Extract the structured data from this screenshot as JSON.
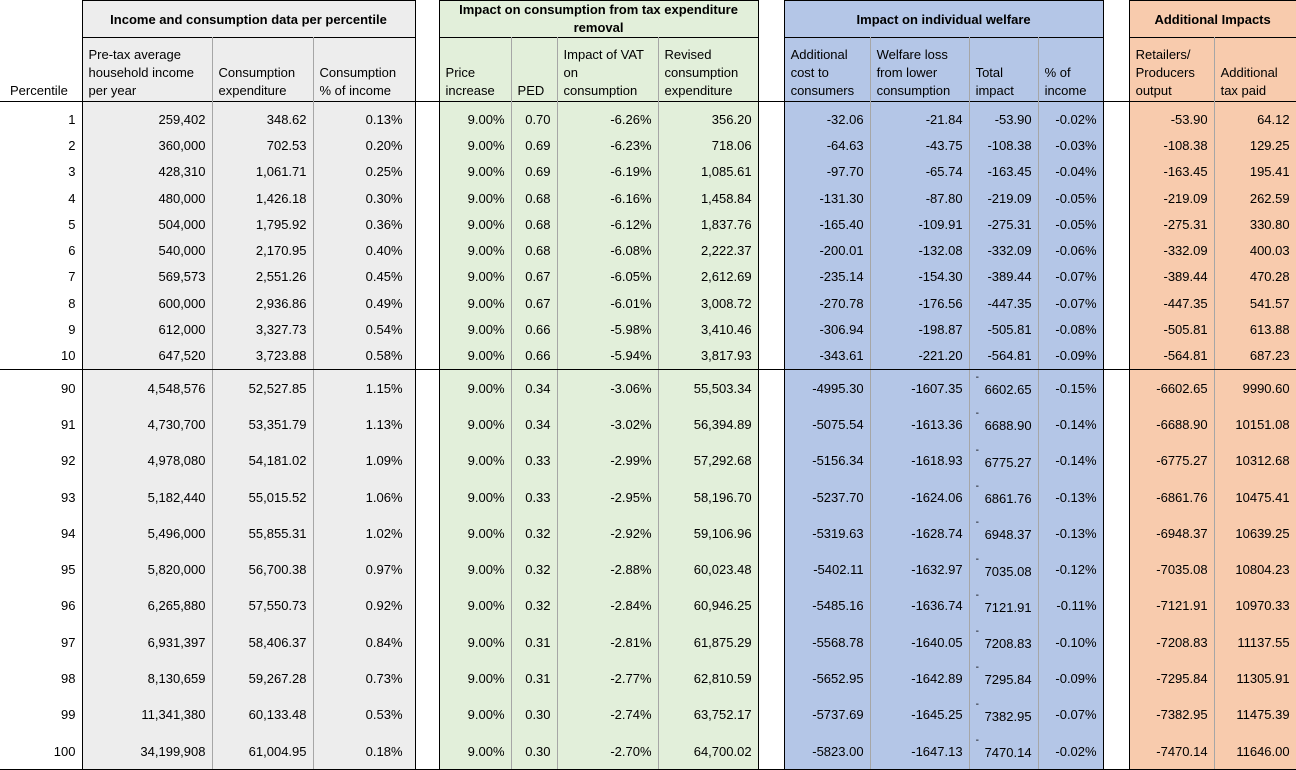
{
  "headers": {
    "percentile": "Percentile",
    "group1": "Income and consumption data per percentile",
    "group2": "Impact on consumption from tax expenditure removal",
    "group3": "Impact on individual welfare",
    "group4": "Additional Impacts",
    "income": "Pre-tax average household income per year",
    "consumption": "Consumption expenditure",
    "cons_pct": "Consumption % of income",
    "price_increase": "Price increase",
    "ped": "PED",
    "vat_impact": "Impact of VAT on consumption",
    "revised": "Revised consumption expenditure",
    "add_cost": "Additional cost to consumers",
    "welfare_loss": "Welfare loss from lower consumption",
    "total_impact": "Total impact",
    "pct_income": "% of income",
    "retail_output": "Retailers/ Producers output",
    "add_tax": "Additional tax paid"
  },
  "rows_top": [
    [
      "1",
      "259,402",
      "348.62",
      "0.13%",
      "9.00%",
      "0.70",
      "-6.26%",
      "356.20",
      "-32.06",
      "-21.84",
      "-53.90",
      "-0.02%",
      "-53.90",
      "64.12"
    ],
    [
      "2",
      "360,000",
      "702.53",
      "0.20%",
      "9.00%",
      "0.69",
      "-6.23%",
      "718.06",
      "-64.63",
      "-43.75",
      "-108.38",
      "-0.03%",
      "-108.38",
      "129.25"
    ],
    [
      "3",
      "428,310",
      "1,061.71",
      "0.25%",
      "9.00%",
      "0.69",
      "-6.19%",
      "1,085.61",
      "-97.70",
      "-65.74",
      "-163.45",
      "-0.04%",
      "-163.45",
      "195.41"
    ],
    [
      "4",
      "480,000",
      "1,426.18",
      "0.30%",
      "9.00%",
      "0.68",
      "-6.16%",
      "1,458.84",
      "-131.30",
      "-87.80",
      "-219.09",
      "-0.05%",
      "-219.09",
      "262.59"
    ],
    [
      "5",
      "504,000",
      "1,795.92",
      "0.36%",
      "9.00%",
      "0.68",
      "-6.12%",
      "1,837.76",
      "-165.40",
      "-109.91",
      "-275.31",
      "-0.05%",
      "-275.31",
      "330.80"
    ],
    [
      "6",
      "540,000",
      "2,170.95",
      "0.40%",
      "9.00%",
      "0.68",
      "-6.08%",
      "2,222.37",
      "-200.01",
      "-132.08",
      "-332.09",
      "-0.06%",
      "-332.09",
      "400.03"
    ],
    [
      "7",
      "569,573",
      "2,551.26",
      "0.45%",
      "9.00%",
      "0.67",
      "-6.05%",
      "2,612.69",
      "-235.14",
      "-154.30",
      "-389.44",
      "-0.07%",
      "-389.44",
      "470.28"
    ],
    [
      "8",
      "600,000",
      "2,936.86",
      "0.49%",
      "9.00%",
      "0.67",
      "-6.01%",
      "3,008.72",
      "-270.78",
      "-176.56",
      "-447.35",
      "-0.07%",
      "-447.35",
      "541.57"
    ],
    [
      "9",
      "612,000",
      "3,327.73",
      "0.54%",
      "9.00%",
      "0.66",
      "-5.98%",
      "3,410.46",
      "-306.94",
      "-198.87",
      "-505.81",
      "-0.08%",
      "-505.81",
      "613.88"
    ],
    [
      "10",
      "647,520",
      "3,723.88",
      "0.58%",
      "9.00%",
      "0.66",
      "-5.94%",
      "3,817.93",
      "-343.61",
      "-221.20",
      "-564.81",
      "-0.09%",
      "-564.81",
      "687.23"
    ]
  ],
  "rows_bottom": [
    [
      "90",
      "4,548,576",
      "52,527.85",
      "1.15%",
      "9.00%",
      "0.34",
      "-3.06%",
      "55,503.34",
      "-4995.30",
      "-1607.35",
      "6602.65",
      "-0.15%",
      "-6602.65",
      "9990.60"
    ],
    [
      "91",
      "4,730,700",
      "53,351.79",
      "1.13%",
      "9.00%",
      "0.34",
      "-3.02%",
      "56,394.89",
      "-5075.54",
      "-1613.36",
      "6688.90",
      "-0.14%",
      "-6688.90",
      "10151.08"
    ],
    [
      "92",
      "4,978,080",
      "54,181.02",
      "1.09%",
      "9.00%",
      "0.33",
      "-2.99%",
      "57,292.68",
      "-5156.34",
      "-1618.93",
      "6775.27",
      "-0.14%",
      "-6775.27",
      "10312.68"
    ],
    [
      "93",
      "5,182,440",
      "55,015.52",
      "1.06%",
      "9.00%",
      "0.33",
      "-2.95%",
      "58,196.70",
      "-5237.70",
      "-1624.06",
      "6861.76",
      "-0.13%",
      "-6861.76",
      "10475.41"
    ],
    [
      "94",
      "5,496,000",
      "55,855.31",
      "1.02%",
      "9.00%",
      "0.32",
      "-2.92%",
      "59,106.96",
      "-5319.63",
      "-1628.74",
      "6948.37",
      "-0.13%",
      "-6948.37",
      "10639.25"
    ],
    [
      "95",
      "5,820,000",
      "56,700.38",
      "0.97%",
      "9.00%",
      "0.32",
      "-2.88%",
      "60,023.48",
      "-5402.11",
      "-1632.97",
      "7035.08",
      "-0.12%",
      "-7035.08",
      "10804.23"
    ],
    [
      "96",
      "6,265,880",
      "57,550.73",
      "0.92%",
      "9.00%",
      "0.32",
      "-2.84%",
      "60,946.25",
      "-5485.16",
      "-1636.74",
      "7121.91",
      "-0.11%",
      "-7121.91",
      "10970.33"
    ],
    [
      "97",
      "6,931,397",
      "58,406.37",
      "0.84%",
      "9.00%",
      "0.31",
      "-2.81%",
      "61,875.29",
      "-5568.78",
      "-1640.05",
      "7208.83",
      "-0.10%",
      "-7208.83",
      "11137.55"
    ],
    [
      "98",
      "8,130,659",
      "59,267.28",
      "0.73%",
      "9.00%",
      "0.31",
      "-2.77%",
      "62,810.59",
      "-5652.95",
      "-1642.89",
      "7295.84",
      "-0.09%",
      "-7295.84",
      "11305.91"
    ],
    [
      "99",
      "11,341,380",
      "60,133.48",
      "0.53%",
      "9.00%",
      "0.30",
      "-2.74%",
      "63,752.17",
      "-5737.69",
      "-1645.25",
      "7382.95",
      "-0.07%",
      "-7382.95",
      "11475.39"
    ],
    [
      "100",
      "34,199,908",
      "61,004.95",
      "0.18%",
      "9.00%",
      "0.30",
      "-2.70%",
      "64,700.02",
      "-5823.00",
      "-1647.13",
      "7470.14",
      "-0.02%",
      "-7470.14",
      "11646.00"
    ]
  ],
  "total_impact_dash": "-"
}
